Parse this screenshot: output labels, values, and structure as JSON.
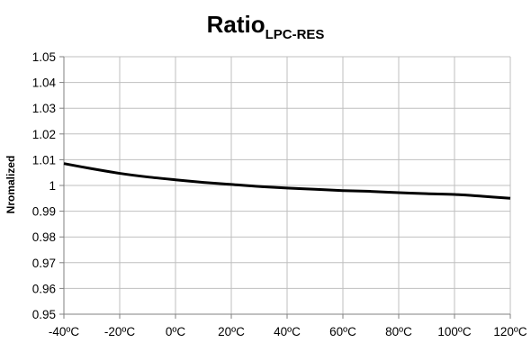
{
  "chart_data": {
    "type": "line",
    "title": "Ratio",
    "title_subscript": "LPC-RES",
    "xlabel": "",
    "ylabel": "Nromalized",
    "x_ticks": [
      "-40ºC",
      "-20ºC",
      "0ºC",
      "20ºC",
      "40ºC",
      "60ºC",
      "80ºC",
      "100ºC",
      "120ºC"
    ],
    "y_ticks": [
      "0.95",
      "0.96",
      "0.97",
      "0.98",
      "0.99",
      "1",
      "1.01",
      "1.02",
      "1.03",
      "1.04",
      "1.05"
    ],
    "xlim": [
      -40,
      120
    ],
    "ylim": [
      0.95,
      1.05
    ],
    "grid": true,
    "legend": "none",
    "series": [
      {
        "color": "#000000",
        "x": [
          -40,
          -30,
          -20,
          -10,
          0,
          10,
          20,
          30,
          40,
          50,
          60,
          70,
          80,
          90,
          100,
          110,
          120
        ],
        "y": [
          1.0085,
          1.0065,
          1.0047,
          1.0033,
          1.0022,
          1.0012,
          1.0004,
          0.9996,
          0.999,
          0.9985,
          0.998,
          0.9977,
          0.9972,
          0.9968,
          0.9965,
          0.9958,
          0.995
        ]
      }
    ]
  }
}
